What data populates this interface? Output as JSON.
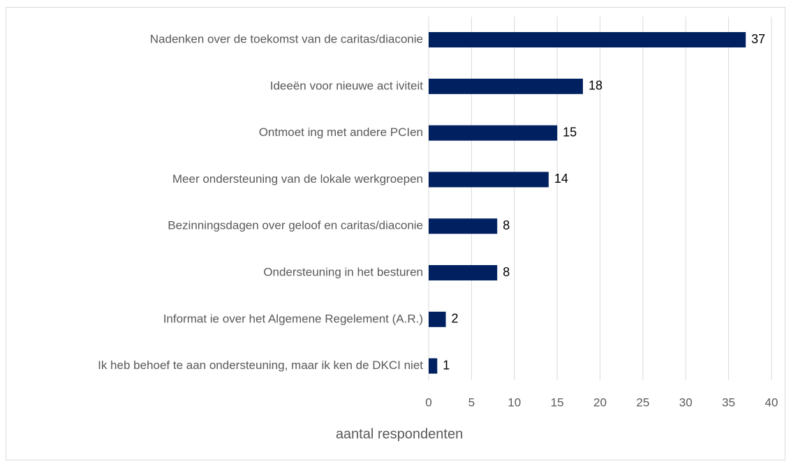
{
  "chart_data": {
    "type": "bar",
    "orientation": "horizontal",
    "categories": [
      "Nadenken over de toekomst van de caritas/diaconie",
      "Ideeën voor nieuwe act iviteit",
      "Ontmoet ing met andere PCIen",
      "Meer ondersteuning van de lokale werkgroepen",
      "Bezinningsdagen over geloof en caritas/diaconie",
      "Ondersteuning in het besturen",
      "Informat ie over het Algemene Regelement (A.R.)",
      "Ik heb behoef te aan ondersteuning, maar ik ken de DKCI niet"
    ],
    "values": [
      37,
      18,
      15,
      14,
      8,
      8,
      2,
      1
    ],
    "color": "#002060",
    "xlabel": "aantal respondenten",
    "xlim": [
      0,
      40
    ],
    "xticks": [
      0,
      5,
      10,
      15,
      20,
      25,
      30,
      35,
      40
    ],
    "grid": true
  }
}
